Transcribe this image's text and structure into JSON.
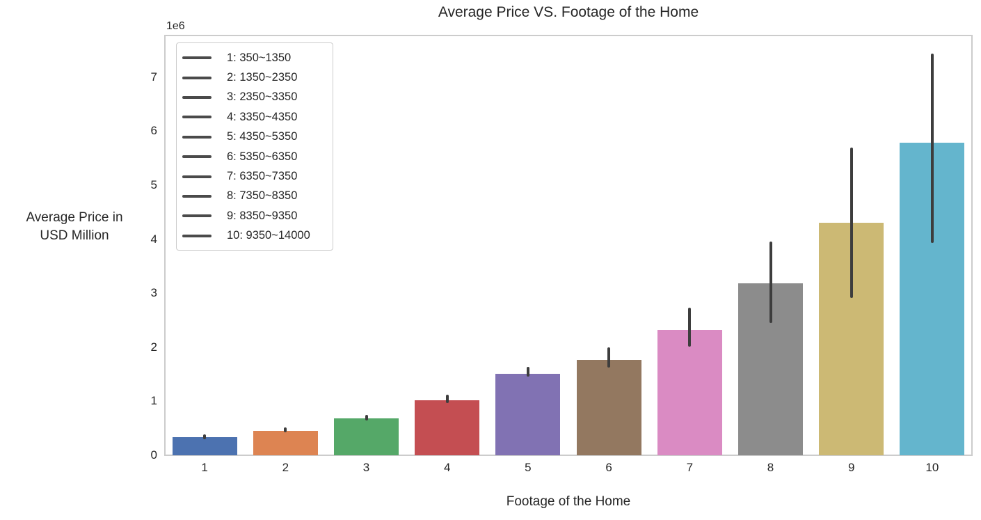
{
  "colors": {
    "background": "#ffffff",
    "text": "#262626",
    "axis_border": "#cccccc",
    "error_bar": "#3d3d3d",
    "legend_border": "#cccccc",
    "legend_line": "#4a4a4a"
  },
  "chart_data": {
    "type": "bar",
    "title": "Average Price VS. Footage of the Home",
    "xlabel": "Footage of the Home",
    "ylabel": "Average Price in\nUSD Million",
    "y_axis_multiplier": "1e6",
    "categories": [
      "1",
      "2",
      "3",
      "4",
      "5",
      "6",
      "7",
      "8",
      "9",
      "10"
    ],
    "values": [
      330000,
      450000,
      680000,
      1020000,
      1510000,
      1770000,
      2320000,
      3180000,
      4300000,
      5790000
    ],
    "error_low": [
      300000,
      430000,
      650000,
      960000,
      1450000,
      1620000,
      2010000,
      2450000,
      2910000,
      3930000
    ],
    "error_high": [
      390000,
      510000,
      750000,
      1120000,
      1640000,
      2000000,
      2730000,
      3960000,
      5690000,
      7440000
    ],
    "bar_colors": [
      "#4c72b0",
      "#dd8452",
      "#55a868",
      "#c44e52",
      "#8172b3",
      "#937860",
      "#da8bc3",
      "#8c8c8c",
      "#ccb974",
      "#64b5cd"
    ],
    "yticks": [
      0,
      1,
      2,
      3,
      4,
      5,
      6,
      7
    ],
    "ylim": [
      0,
      7780000
    ],
    "grid": false,
    "legend": {
      "position": "upper left",
      "entries": [
        "1: 350~1350",
        "2: 1350~2350",
        "3: 2350~3350",
        "4: 3350~4350",
        "5: 4350~5350",
        "6: 5350~6350",
        "7: 6350~7350",
        "8: 7350~8350",
        "9: 8350~9350",
        "10: 9350~14000"
      ]
    }
  }
}
